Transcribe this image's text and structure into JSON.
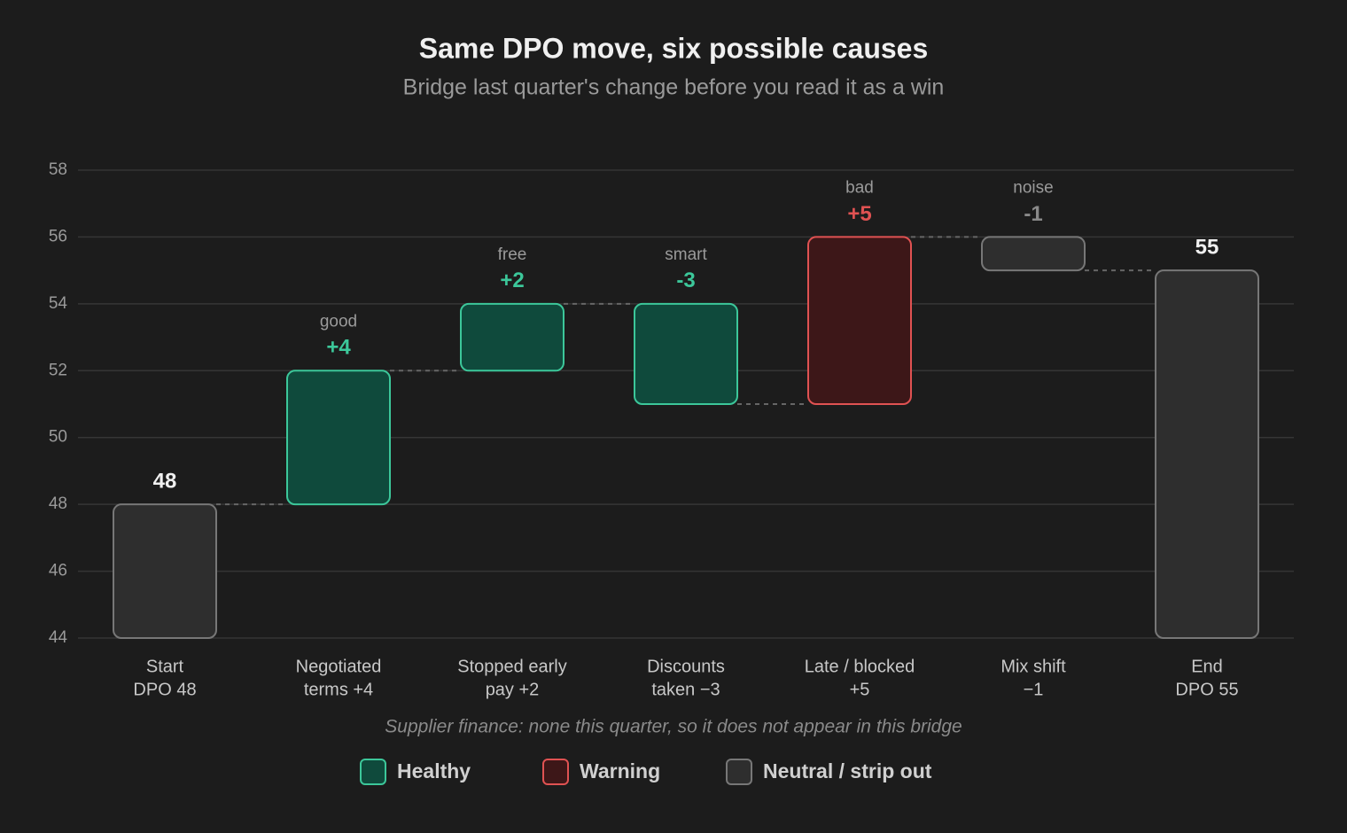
{
  "chart_data": {
    "type": "waterfall",
    "title": "Same DPO move, six possible causes",
    "subtitle": "Bridge last quarter's change before you read it as a win",
    "categories": [
      [
        "Start",
        "DPO 48"
      ],
      [
        "Negotiated",
        "terms +4"
      ],
      [
        "Stopped early",
        "pay +2"
      ],
      [
        "Discounts",
        "taken −3"
      ],
      [
        "Late / blocked",
        "+5"
      ],
      [
        "Mix shift",
        "−1"
      ],
      [
        "End",
        "DPO 55"
      ]
    ],
    "values": [
      48,
      4,
      2,
      -3,
      5,
      -1,
      55
    ],
    "value_labels": [
      "48",
      "+4",
      "+2",
      "-3",
      "+5",
      "-1",
      "55"
    ],
    "totals": [
      true,
      false,
      false,
      false,
      false,
      false,
      true
    ],
    "tags": [
      null,
      "good",
      "free",
      "smart",
      "bad",
      "noise",
      null
    ],
    "legend_index": [
      2,
      0,
      0,
      0,
      1,
      2,
      2
    ],
    "legend": [
      {
        "name": "Healthy",
        "fill": "#0f4a3c",
        "stroke": "#3cc79a",
        "text": "#3cc79a"
      },
      {
        "name": "Warning",
        "fill": "#3d1718",
        "stroke": "#e05252",
        "text": "#e05252"
      },
      {
        "name": "Neutral / strip out",
        "fill": "#2e2e2e",
        "stroke": "#777777",
        "text": "#8a8a8a"
      }
    ],
    "ylim": [
      44,
      58
    ],
    "yticks": [
      44,
      46,
      48,
      50,
      52,
      54,
      56,
      58
    ],
    "grid": true,
    "annotation": "Supplier finance: none this quarter, so it does not appear in this bridge"
  }
}
